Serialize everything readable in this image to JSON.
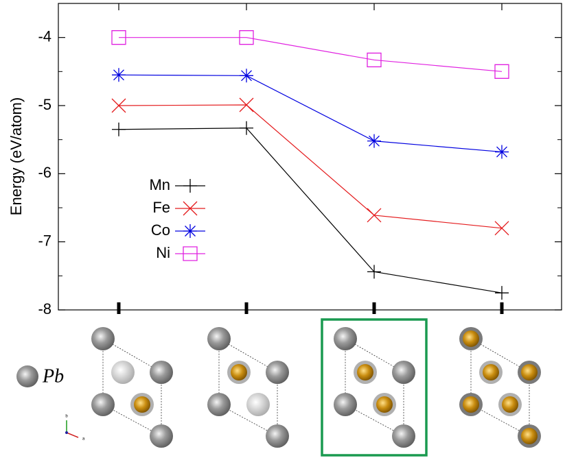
{
  "chart_data": {
    "type": "line",
    "y_label": "Energy (eV/atom)",
    "categories": [
      null,
      null,
      null,
      null
    ],
    "series": [
      {
        "name": "Mn",
        "color": "#000000",
        "marker": "plus",
        "values": [
          -5.35,
          -5.33,
          -7.44,
          -7.75
        ]
      },
      {
        "name": "Fe",
        "color": "#e41a1c",
        "marker": "x",
        "values": [
          -5.0,
          -4.99,
          -6.61,
          -6.8
        ]
      },
      {
        "name": "Co",
        "color": "#0000e0",
        "marker": "asterisk",
        "values": [
          -4.55,
          -4.56,
          -5.52,
          -5.68
        ]
      },
      {
        "name": "Ni",
        "color": "#e020e0",
        "marker": "square",
        "values": [
          -4.0,
          -4.0,
          -4.33,
          -4.5
        ]
      }
    ],
    "ylim": [
      -8,
      -3.5
    ],
    "yticks": [
      -8,
      -7,
      -6,
      -5,
      -4
    ],
    "yminorticks": [
      -7.5,
      -6.5,
      -5.5,
      -4.5
    ],
    "legend": "left",
    "structure_legend": "Pb",
    "axis_labels": [
      "b",
      "a"
    ]
  }
}
